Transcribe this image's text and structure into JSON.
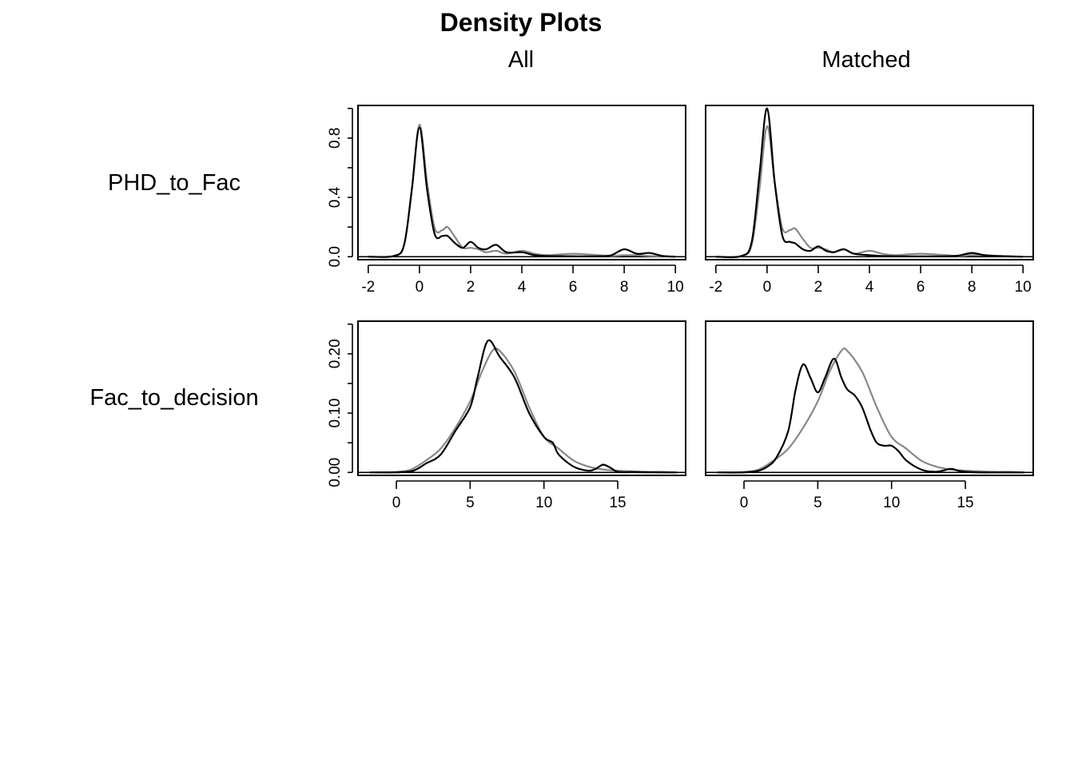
{
  "title": "Density Plots",
  "column_labels": [
    "All",
    "Matched"
  ],
  "row_labels": [
    "PHD_to_Fac",
    "Fac_to_decision"
  ],
  "colors": {
    "treated": "#000000",
    "control": "#888888",
    "frame": "#000000"
  },
  "chart_data": [
    {
      "type": "line",
      "row": 0,
      "col": 0,
      "variable": "PHD_to_Fac",
      "sample": "All",
      "xlim": [
        -2.4,
        10.4
      ],
      "ylim": [
        -0.02,
        1.02
      ],
      "x_ticks": [
        -2,
        0,
        2,
        4,
        6,
        8,
        10
      ],
      "y_ticks": [
        0.0,
        0.2,
        0.4,
        0.6,
        0.8,
        1.0
      ],
      "y_tick_labels": [
        "0.0",
        "",
        "0.4",
        "",
        "0.8",
        ""
      ],
      "grid": false,
      "series": [
        {
          "style": "control",
          "x": [
            -2,
            -1,
            -0.6,
            -0.3,
            0,
            0.3,
            0.6,
            0.9,
            1.1,
            1.4,
            1.7,
            2,
            2.3,
            2.6,
            3,
            3.4,
            4,
            4.5,
            5,
            6,
            7,
            7.5,
            8,
            8.5,
            9,
            9.5,
            10
          ],
          "y": [
            0,
            0.005,
            0.08,
            0.45,
            0.89,
            0.5,
            0.19,
            0.18,
            0.2,
            0.13,
            0.06,
            0.06,
            0.05,
            0.03,
            0.04,
            0.02,
            0.04,
            0.02,
            0.01,
            0.02,
            0.01,
            0.005,
            0.01,
            0.01,
            0.005,
            0.003,
            0
          ]
        },
        {
          "style": "treated",
          "x": [
            -2,
            -1,
            -0.6,
            -0.3,
            0,
            0.3,
            0.6,
            0.9,
            1.1,
            1.4,
            1.7,
            2,
            2.3,
            2.6,
            3,
            3.4,
            4,
            4.5,
            5,
            6,
            7,
            7.5,
            8,
            8.5,
            9,
            9.5,
            10
          ],
          "y": [
            0,
            0.005,
            0.08,
            0.45,
            0.87,
            0.45,
            0.15,
            0.14,
            0.14,
            0.09,
            0.06,
            0.1,
            0.06,
            0.05,
            0.08,
            0.03,
            0.03,
            0.01,
            0.005,
            0.003,
            0.003,
            0.01,
            0.05,
            0.02,
            0.025,
            0.005,
            0
          ]
        }
      ]
    },
    {
      "type": "line",
      "row": 0,
      "col": 1,
      "variable": "PHD_to_Fac",
      "sample": "Matched",
      "xlim": [
        -2.4,
        10.4
      ],
      "ylim": [
        -0.02,
        1.02
      ],
      "x_ticks": [
        -2,
        0,
        2,
        4,
        6,
        8,
        10
      ],
      "y_ticks": [],
      "y_tick_labels": [],
      "grid": false,
      "series": [
        {
          "style": "control",
          "x": [
            -2,
            -1,
            -0.6,
            -0.3,
            0,
            0.3,
            0.6,
            0.9,
            1.1,
            1.4,
            1.7,
            2,
            2.3,
            2.6,
            3,
            3.4,
            4,
            4.5,
            5,
            6,
            7,
            7.5,
            8,
            8.5,
            9,
            9.5,
            10
          ],
          "y": [
            0,
            0.005,
            0.08,
            0.45,
            0.88,
            0.5,
            0.19,
            0.18,
            0.19,
            0.12,
            0.06,
            0.06,
            0.05,
            0.03,
            0.05,
            0.02,
            0.04,
            0.02,
            0.01,
            0.02,
            0.01,
            0.005,
            0.01,
            0.01,
            0.005,
            0.003,
            0
          ]
        },
        {
          "style": "treated",
          "x": [
            -2,
            -1,
            -0.6,
            -0.3,
            0,
            0.3,
            0.6,
            0.9,
            1.1,
            1.4,
            1.7,
            2,
            2.3,
            2.6,
            3,
            3.4,
            4,
            4.5,
            5,
            6,
            7,
            7.5,
            8,
            8.5,
            9,
            9.5,
            10
          ],
          "y": [
            0,
            0.005,
            0.1,
            0.55,
            1.0,
            0.5,
            0.14,
            0.1,
            0.09,
            0.05,
            0.04,
            0.07,
            0.04,
            0.03,
            0.05,
            0.02,
            0.01,
            0.005,
            0.003,
            0.002,
            0.003,
            0.008,
            0.025,
            0.01,
            0.005,
            0.002,
            0
          ]
        }
      ]
    },
    {
      "type": "line",
      "row": 1,
      "col": 0,
      "variable": "Fac_to_decision",
      "sample": "All",
      "xlim": [
        -2.6,
        19.6
      ],
      "ylim": [
        -0.005,
        0.255
      ],
      "x_ticks": [
        0,
        5,
        10,
        15
      ],
      "y_ticks": [
        0.0,
        0.05,
        0.1,
        0.15,
        0.2,
        0.25
      ],
      "y_tick_labels": [
        "0.00",
        "",
        "0.10",
        "",
        "0.20",
        ""
      ],
      "grid": false,
      "series": [
        {
          "style": "control",
          "x": [
            -1.8,
            0,
            1,
            2,
            3,
            4,
            5,
            5.8,
            6.5,
            7,
            8,
            9,
            10,
            11,
            12,
            13,
            14,
            15,
            16,
            17,
            18,
            19
          ],
          "y": [
            0,
            0.001,
            0.005,
            0.02,
            0.04,
            0.075,
            0.12,
            0.17,
            0.205,
            0.205,
            0.17,
            0.11,
            0.06,
            0.04,
            0.02,
            0.01,
            0.005,
            0.003,
            0.002,
            0.001,
            0.001,
            0
          ]
        },
        {
          "style": "treated",
          "x": [
            -1.8,
            0,
            1,
            1.5,
            2,
            3,
            4,
            5,
            5.5,
            6.2,
            7,
            8,
            9,
            10,
            10.6,
            11,
            12,
            13,
            13.5,
            14,
            14.5,
            15,
            16,
            17,
            18,
            19
          ],
          "y": [
            0,
            0,
            0.002,
            0.007,
            0.015,
            0.03,
            0.07,
            0.11,
            0.16,
            0.222,
            0.195,
            0.16,
            0.1,
            0.06,
            0.05,
            0.03,
            0.01,
            0.003,
            0.006,
            0.013,
            0.008,
            0.001,
            0.0005,
            0.0003,
            0,
            0
          ]
        }
      ]
    },
    {
      "type": "line",
      "row": 1,
      "col": 1,
      "variable": "Fac_to_decision",
      "sample": "Matched",
      "xlim": [
        -2.6,
        19.6
      ],
      "ylim": [
        -0.005,
        0.255
      ],
      "x_ticks": [
        0,
        5,
        10,
        15
      ],
      "y_ticks": [],
      "y_tick_labels": [],
      "grid": false,
      "series": [
        {
          "style": "control",
          "x": [
            -1.8,
            0,
            1,
            2,
            3,
            4,
            5,
            5.8,
            6.6,
            7,
            8,
            9,
            10,
            11,
            12,
            13,
            14,
            15,
            16,
            17,
            18,
            19
          ],
          "y": [
            0,
            0.001,
            0.005,
            0.02,
            0.04,
            0.075,
            0.12,
            0.17,
            0.205,
            0.205,
            0.17,
            0.11,
            0.06,
            0.04,
            0.02,
            0.01,
            0.005,
            0.003,
            0.002,
            0.001,
            0.001,
            0
          ]
        },
        {
          "style": "treated",
          "x": [
            -1.8,
            0,
            1,
            1.6,
            2.2,
            3,
            3.5,
            4,
            4.5,
            5,
            5.5,
            6.1,
            6.6,
            7,
            7.5,
            8,
            8.6,
            9,
            9.5,
            10,
            10.5,
            11,
            12,
            13,
            14,
            14.5,
            15,
            16,
            17,
            18,
            19
          ],
          "y": [
            0,
            0,
            0.003,
            0.01,
            0.025,
            0.07,
            0.14,
            0.182,
            0.16,
            0.135,
            0.16,
            0.192,
            0.16,
            0.14,
            0.13,
            0.11,
            0.07,
            0.05,
            0.045,
            0.045,
            0.035,
            0.02,
            0.005,
            0.001,
            0.006,
            0.003,
            0.001,
            0,
            0,
            0,
            0
          ]
        }
      ]
    }
  ]
}
